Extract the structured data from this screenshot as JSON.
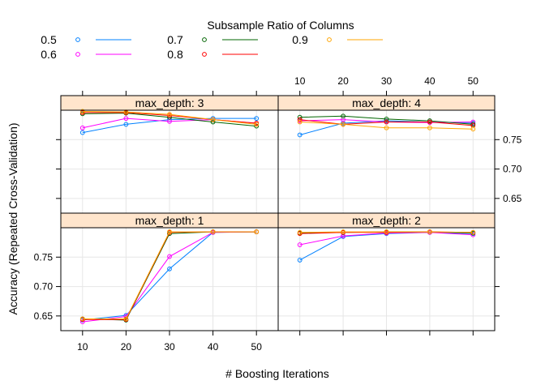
{
  "chart_data": {
    "type": "line",
    "legend": {
      "title": "Subsample Ratio of Columns",
      "placement": "top",
      "entries": [
        {
          "label": "0.5",
          "color": "#0080ff"
        },
        {
          "label": "0.6",
          "color": "#ff00ff"
        },
        {
          "label": "0.7",
          "color": "#006400"
        },
        {
          "label": "0.8",
          "color": "#ff0000"
        },
        {
          "label": "0.9",
          "color": "#ffa500"
        }
      ]
    },
    "xlabel": "# Boosting Iterations",
    "ylabel": "Accuracy (Repeated Cross-Validation)",
    "x": [
      10,
      20,
      30,
      40,
      50
    ],
    "xticks": [
      "10",
      "20",
      "30",
      "40",
      "50"
    ],
    "ylim": [
      0.625,
      0.8
    ],
    "yticks": [
      "0.65",
      "0.70",
      "0.75"
    ],
    "grid": true,
    "panels": [
      {
        "strip": "max_depth: 3",
        "series": [
          {
            "name": "0.5",
            "values": [
              0.762,
              0.776,
              0.784,
              0.786,
              0.786
            ]
          },
          {
            "name": "0.6",
            "values": [
              0.77,
              0.786,
              0.781,
              0.784,
              0.778
            ]
          },
          {
            "name": "0.7",
            "values": [
              0.794,
              0.795,
              0.788,
              0.78,
              0.773
            ]
          },
          {
            "name": "0.8",
            "values": [
              0.796,
              0.796,
              0.791,
              0.784,
              0.778
            ]
          },
          {
            "name": "0.9",
            "values": [
              0.798,
              0.797,
              0.793,
              0.784,
              0.776
            ]
          }
        ]
      },
      {
        "strip": "max_depth: 4",
        "series": [
          {
            "name": "0.5",
            "values": [
              0.758,
              0.778,
              0.782,
              0.78,
              0.778
            ]
          },
          {
            "name": "0.6",
            "values": [
              0.782,
              0.784,
              0.78,
              0.779,
              0.78
            ]
          },
          {
            "name": "0.7",
            "values": [
              0.788,
              0.79,
              0.785,
              0.782,
              0.776
            ]
          },
          {
            "name": "0.8",
            "values": [
              0.784,
              0.776,
              0.78,
              0.78,
              0.774
            ]
          },
          {
            "name": "0.9",
            "values": [
              0.78,
              0.776,
              0.77,
              0.77,
              0.768
            ]
          }
        ]
      },
      {
        "strip": "max_depth: 1",
        "series": [
          {
            "name": "0.5",
            "values": [
              0.643,
              0.651,
              0.73,
              0.792,
              0.793
            ]
          },
          {
            "name": "0.6",
            "values": [
              0.64,
              0.649,
              0.751,
              0.792,
              0.793
            ]
          },
          {
            "name": "0.7",
            "values": [
              0.645,
              0.643,
              0.79,
              0.793,
              0.793
            ]
          },
          {
            "name": "0.8",
            "values": [
              0.644,
              0.644,
              0.792,
              0.793,
              0.793
            ]
          },
          {
            "name": "0.9",
            "values": [
              0.645,
              0.645,
              0.793,
              0.793,
              0.793
            ]
          }
        ]
      },
      {
        "strip": "max_depth: 2",
        "series": [
          {
            "name": "0.5",
            "values": [
              0.745,
              0.785,
              0.79,
              0.792,
              0.79
            ]
          },
          {
            "name": "0.6",
            "values": [
              0.771,
              0.786,
              0.791,
              0.792,
              0.788
            ]
          },
          {
            "name": "0.7",
            "values": [
              0.791,
              0.792,
              0.793,
              0.793,
              0.791
            ]
          },
          {
            "name": "0.8",
            "values": [
              0.79,
              0.792,
              0.792,
              0.793,
              0.792
            ]
          },
          {
            "name": "0.9",
            "values": [
              0.792,
              0.793,
              0.793,
              0.793,
              0.792
            ]
          }
        ]
      }
    ]
  }
}
